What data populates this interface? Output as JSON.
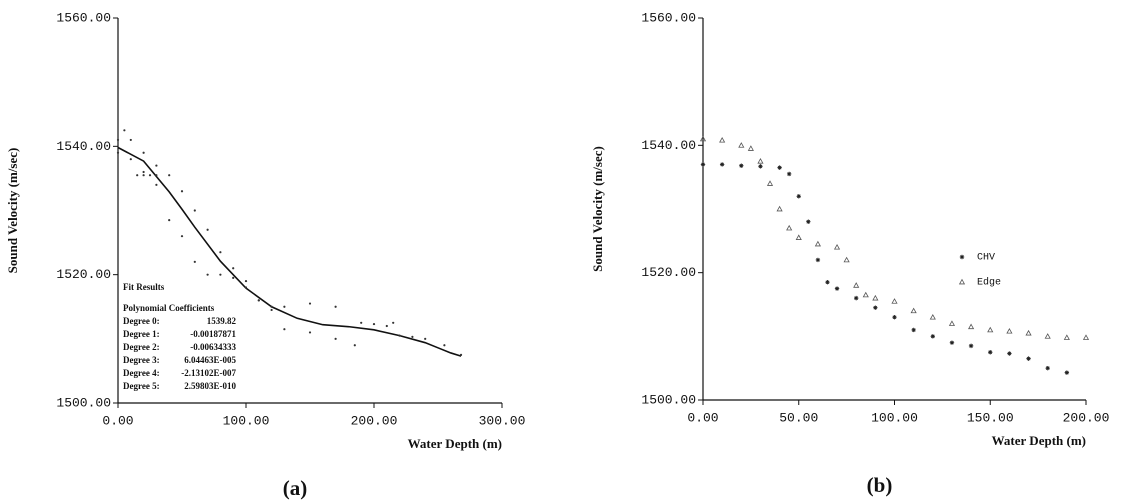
{
  "chart_data": [
    {
      "type": "scatter",
      "caption": "(a)",
      "x_label": "Water Depth (m)",
      "y_label": "Sound Velocity (m/sec)",
      "xlim": [
        0,
        300
      ],
      "ylim": [
        1500,
        1560
      ],
      "xticks": [
        {
          "value": 0,
          "label": "0.00"
        },
        {
          "value": 100,
          "label": "100.00"
        },
        {
          "value": 200,
          "label": "200.00"
        },
        {
          "value": 300,
          "label": "300.00"
        }
      ],
      "yticks": [
        {
          "value": 1500,
          "label": "1500.00"
        },
        {
          "value": 1520,
          "label": "1520.00"
        },
        {
          "value": 1540,
          "label": "1540.00"
        },
        {
          "value": 1560,
          "label": "1560.00"
        }
      ],
      "annotations": {
        "title": "Fit Results",
        "subtitle": "Polynomial Coefficients",
        "rows": [
          [
            "Degree 0:",
            "1539.82"
          ],
          [
            "Degree 1:",
            "-0.00187871"
          ],
          [
            "Degree 2:",
            "-0.00634333"
          ],
          [
            "Degree 3:",
            "6.04463E-005"
          ],
          [
            "Degree 4:",
            "-2.13102E-007"
          ],
          [
            "Degree 5:",
            "2.59803E-010"
          ]
        ]
      },
      "series": [
        {
          "mode": "dots",
          "color": "#333333",
          "x": [
            0,
            5,
            10,
            20,
            30,
            40,
            50,
            60,
            70,
            80,
            90,
            100,
            110,
            120,
            130,
            150,
            170
          ],
          "values": [
            1541,
            1542.5,
            1541,
            1539,
            1537,
            1535.5,
            1533,
            1530,
            1527,
            1523.5,
            1521,
            1519,
            1516,
            1515,
            1515,
            1515.5,
            1515
          ]
        },
        {
          "mode": "dots",
          "color": "#333333",
          "x": [
            0,
            10,
            20,
            30,
            40,
            50,
            60,
            70,
            80,
            90,
            100,
            110,
            120,
            130,
            150,
            170,
            185
          ],
          "values": [
            1539,
            1538,
            1536,
            1534,
            1528.5,
            1526,
            1522,
            1520,
            1520,
            1519.5,
            1518,
            1516,
            1514.5,
            1511.5,
            1511,
            1510,
            1509
          ]
        },
        {
          "mode": "dots",
          "color": "#333333",
          "x": [
            15,
            20,
            25,
            30
          ],
          "values": [
            1535.5,
            1535.5,
            1535.5,
            1535.5
          ]
        },
        {
          "mode": "dots",
          "color": "#333333",
          "x": [
            190,
            200,
            210,
            215,
            220,
            230,
            240,
            255,
            268
          ],
          "values": [
            1512.5,
            1512.3,
            1512,
            1512.5,
            1510.5,
            1510.3,
            1510,
            1509,
            1507.5
          ]
        },
        {
          "mode": "line",
          "color": "#111111",
          "x": [
            0,
            20,
            40,
            50,
            60,
            80,
            100,
            120,
            140,
            150,
            160,
            180,
            200,
            220,
            240,
            250,
            260,
            268
          ],
          "values": [
            1539.82,
            1537.7,
            1532.9,
            1530.2,
            1527.4,
            1522.1,
            1517.9,
            1515,
            1513.2,
            1512.7,
            1512.2,
            1511.9,
            1511.4,
            1510.5,
            1509.4,
            1508.6,
            1507.8,
            1507.3
          ]
        }
      ]
    },
    {
      "type": "scatter",
      "caption": "(b)",
      "x_label": "Water Depth (m)",
      "y_label": "Sound Velocity (m/sec)",
      "xlim": [
        0,
        200
      ],
      "ylim": [
        1500,
        1560
      ],
      "legend": "right",
      "xticks": [
        {
          "value": 0,
          "label": "0.00"
        },
        {
          "value": 50,
          "label": "50.00"
        },
        {
          "value": 100,
          "label": "100.00"
        },
        {
          "value": 150,
          "label": "150.00"
        },
        {
          "value": 200,
          "label": "200.00"
        }
      ],
      "yticks": [
        {
          "value": 1500,
          "label": "1500.00"
        },
        {
          "value": 1520,
          "label": "1520.00"
        },
        {
          "value": 1540,
          "label": "1540.00"
        },
        {
          "value": 1560,
          "label": "1560.00"
        }
      ],
      "series": [
        {
          "name": "CHV",
          "marker": "asterisk",
          "color": "#222222",
          "x": [
            0,
            10,
            20,
            30,
            40,
            45,
            50,
            55,
            60,
            65,
            70,
            80,
            90,
            100,
            110,
            120,
            130,
            140,
            150,
            160,
            170,
            180,
            190
          ],
          "values": [
            1537,
            1537,
            1536.8,
            1536.7,
            1536.5,
            1535.5,
            1532,
            1528,
            1522,
            1518.5,
            1517.5,
            1516,
            1514.5,
            1513,
            1511,
            1510,
            1509,
            1508.5,
            1507.5,
            1507.3,
            1506.5,
            1505,
            1504.3
          ]
        },
        {
          "name": "Edge",
          "marker": "triangle",
          "color": "#555555",
          "x": [
            0,
            10,
            20,
            25,
            30,
            35,
            40,
            45,
            50,
            60,
            70,
            75,
            80,
            85,
            90,
            100,
            110,
            120,
            130,
            140,
            150,
            160,
            170,
            180,
            190,
            200
          ],
          "values": [
            1541,
            1540.8,
            1540,
            1539.5,
            1537.5,
            1534,
            1530,
            1527,
            1525.5,
            1524.5,
            1524,
            1522,
            1518,
            1516.5,
            1516,
            1515.5,
            1514,
            1513,
            1512,
            1511.5,
            1511,
            1510.8,
            1510.5,
            1510,
            1509.8,
            1509.8
          ]
        }
      ]
    }
  ]
}
